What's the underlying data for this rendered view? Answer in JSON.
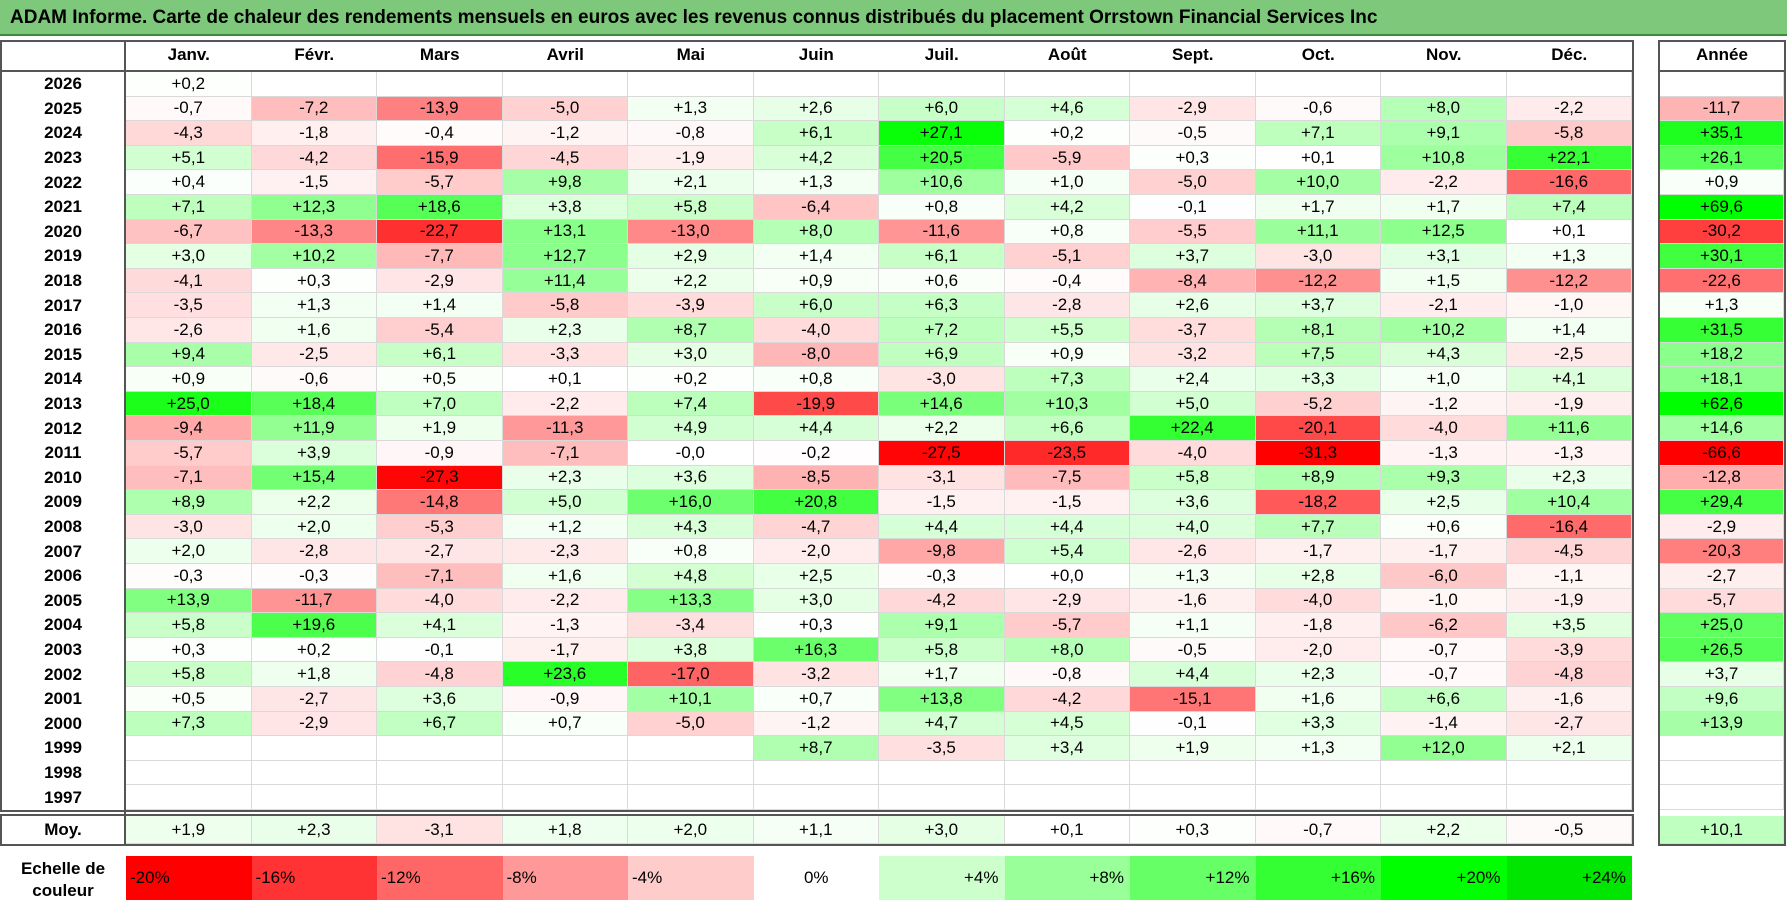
{
  "title": "ADAM Informe. Carte de chaleur des rendements mensuels en euros avec les revenus connus distribués du placement Orrstown Financial Services Inc",
  "chart_data": {
    "type": "heatmap",
    "title": "ADAM Informe. Carte de chaleur des rendements mensuels en euros avec les revenus connus distribués du placement Orrstown Financial Services Inc",
    "columns": [
      "Janv.",
      "Févr.",
      "Mars",
      "Avril",
      "Mai",
      "Juin",
      "Juil.",
      "Août",
      "Sept.",
      "Oct.",
      "Nov.",
      "Déc."
    ],
    "year_column": "Année",
    "rows": [
      {
        "year": "2026",
        "values": [
          "+0,2",
          null,
          null,
          null,
          null,
          null,
          null,
          null,
          null,
          null,
          null,
          null
        ],
        "annual": null
      },
      {
        "year": "2025",
        "values": [
          "-0,7",
          "-7,2",
          "-13,9",
          "-5,0",
          "+1,3",
          "+2,6",
          "+6,0",
          "+4,6",
          "-2,9",
          "-0,6",
          "+8,0",
          "-2,2"
        ],
        "annual": "-11,7"
      },
      {
        "year": "2024",
        "values": [
          "-4,3",
          "-1,8",
          "-0,4",
          "-1,2",
          "-0,8",
          "+6,1",
          "+27,1",
          "+0,2",
          "-0,5",
          "+7,1",
          "+9,1",
          "-5,8"
        ],
        "annual": "+35,1"
      },
      {
        "year": "2023",
        "values": [
          "+5,1",
          "-4,2",
          "-15,9",
          "-4,5",
          "-1,9",
          "+4,2",
          "+20,5",
          "-5,9",
          "+0,3",
          "+0,1",
          "+10,8",
          "+22,1"
        ],
        "annual": "+26,1"
      },
      {
        "year": "2022",
        "values": [
          "+0,4",
          "-1,5",
          "-5,7",
          "+9,8",
          "+2,1",
          "+1,3",
          "+10,6",
          "+1,0",
          "-5,0",
          "+10,0",
          "-2,2",
          "-16,6"
        ],
        "annual": "+0,9"
      },
      {
        "year": "2021",
        "values": [
          "+7,1",
          "+12,3",
          "+18,6",
          "+3,8",
          "+5,8",
          "-6,4",
          "+0,8",
          "+4,2",
          "-0,1",
          "+1,7",
          "+1,7",
          "+7,4"
        ],
        "annual": "+69,6"
      },
      {
        "year": "2020",
        "values": [
          "-6,7",
          "-13,3",
          "-22,7",
          "+13,1",
          "-13,0",
          "+8,0",
          "-11,6",
          "+0,8",
          "-5,5",
          "+11,1",
          "+12,5",
          "+0,1"
        ],
        "annual": "-30,2"
      },
      {
        "year": "2019",
        "values": [
          "+3,0",
          "+10,2",
          "-7,7",
          "+12,7",
          "+2,9",
          "+1,4",
          "+6,1",
          "-5,1",
          "+3,7",
          "-3,0",
          "+3,1",
          "+1,3"
        ],
        "annual": "+30,1"
      },
      {
        "year": "2018",
        "values": [
          "-4,1",
          "+0,3",
          "-2,9",
          "+11,4",
          "+2,2",
          "+0,9",
          "+0,6",
          "-0,4",
          "-8,4",
          "-12,2",
          "+1,5",
          "-12,2"
        ],
        "annual": "-22,6"
      },
      {
        "year": "2017",
        "values": [
          "-3,5",
          "+1,3",
          "+1,4",
          "-5,8",
          "-3,9",
          "+6,0",
          "+6,3",
          "-2,8",
          "+2,6",
          "+3,7",
          "-2,1",
          "-1,0"
        ],
        "annual": "+1,3"
      },
      {
        "year": "2016",
        "values": [
          "-2,6",
          "+1,6",
          "-5,4",
          "+2,3",
          "+8,7",
          "-4,0",
          "+7,2",
          "+5,5",
          "-3,7",
          "+8,1",
          "+10,2",
          "+1,4"
        ],
        "annual": "+31,5"
      },
      {
        "year": "2015",
        "values": [
          "+9,4",
          "-2,5",
          "+6,1",
          "-3,3",
          "+3,0",
          "-8,0",
          "+6,9",
          "+0,9",
          "-3,2",
          "+7,5",
          "+4,3",
          "-2,5"
        ],
        "annual": "+18,2"
      },
      {
        "year": "2014",
        "values": [
          "+0,9",
          "-0,6",
          "+0,5",
          "+0,1",
          "+0,2",
          "+0,8",
          "-3,0",
          "+7,3",
          "+2,4",
          "+3,3",
          "+1,0",
          "+4,1"
        ],
        "annual": "+18,1"
      },
      {
        "year": "2013",
        "values": [
          "+25,0",
          "+18,4",
          "+7,0",
          "-2,2",
          "+7,4",
          "-19,9",
          "+14,6",
          "+10,3",
          "+5,0",
          "-5,2",
          "-1,2",
          "-1,9"
        ],
        "annual": "+62,6"
      },
      {
        "year": "2012",
        "values": [
          "-9,4",
          "+11,9",
          "+1,9",
          "-11,3",
          "+4,9",
          "+4,4",
          "+2,2",
          "+6,6",
          "+22,4",
          "-20,1",
          "-4,0",
          "+11,6"
        ],
        "annual": "+14,6"
      },
      {
        "year": "2011",
        "values": [
          "-5,7",
          "+3,9",
          "-0,9",
          "-7,1",
          "-0,0",
          "-0,2",
          "-27,5",
          "-23,5",
          "-4,0",
          "-31,3",
          "-1,3",
          "-1,3"
        ],
        "annual": "-66,6"
      },
      {
        "year": "2010",
        "values": [
          "-7,1",
          "+15,4",
          "-27,3",
          "+2,3",
          "+3,6",
          "-8,5",
          "-3,1",
          "-7,5",
          "+5,8",
          "+8,9",
          "+9,3",
          "+2,3"
        ],
        "annual": "-12,8"
      },
      {
        "year": "2009",
        "values": [
          "+8,9",
          "+2,2",
          "-14,8",
          "+5,0",
          "+16,0",
          "+20,8",
          "-1,5",
          "-1,5",
          "+3,6",
          "-18,2",
          "+2,5",
          "+10,4"
        ],
        "annual": "+29,4"
      },
      {
        "year": "2008",
        "values": [
          "-3,0",
          "+2,0",
          "-5,3",
          "+1,2",
          "+4,3",
          "-4,7",
          "+4,4",
          "+4,4",
          "+4,0",
          "+7,7",
          "+0,6",
          "-16,4"
        ],
        "annual": "-2,9"
      },
      {
        "year": "2007",
        "values": [
          "+2,0",
          "-2,8",
          "-2,7",
          "-2,3",
          "+0,8",
          "-2,0",
          "-9,8",
          "+5,4",
          "-2,6",
          "-1,7",
          "-1,7",
          "-4,5"
        ],
        "annual": "-20,3"
      },
      {
        "year": "2006",
        "values": [
          "-0,3",
          "-0,3",
          "-7,1",
          "+1,6",
          "+4,8",
          "+2,5",
          "-0,3",
          "+0,0",
          "+1,3",
          "+2,8",
          "-6,0",
          "-1,1"
        ],
        "annual": "-2,7"
      },
      {
        "year": "2005",
        "values": [
          "+13,9",
          "-11,7",
          "-4,0",
          "-2,2",
          "+13,3",
          "+3,0",
          "-4,2",
          "-2,9",
          "-1,6",
          "-4,0",
          "-1,0",
          "-1,9"
        ],
        "annual": "-5,7"
      },
      {
        "year": "2004",
        "values": [
          "+5,8",
          "+19,6",
          "+4,1",
          "-1,3",
          "-3,4",
          "+0,3",
          "+9,1",
          "-5,7",
          "+1,1",
          "-1,8",
          "-6,2",
          "+3,5"
        ],
        "annual": "+25,0"
      },
      {
        "year": "2003",
        "values": [
          "+0,3",
          "+0,2",
          "-0,1",
          "-1,7",
          "+3,8",
          "+16,3",
          "+5,8",
          "+8,0",
          "-0,5",
          "-2,0",
          "-0,7",
          "-3,9"
        ],
        "annual": "+26,5"
      },
      {
        "year": "2002",
        "values": [
          "+5,8",
          "+1,8",
          "-4,8",
          "+23,6",
          "-17,0",
          "-3,2",
          "+1,7",
          "-0,8",
          "+4,4",
          "+2,3",
          "-0,7",
          "-4,8"
        ],
        "annual": "+3,7"
      },
      {
        "year": "2001",
        "values": [
          "+0,5",
          "-2,7",
          "+3,6",
          "-0,9",
          "+10,1",
          "+0,7",
          "+13,8",
          "-4,2",
          "-15,1",
          "+1,6",
          "+6,6",
          "-1,6"
        ],
        "annual": "+9,6"
      },
      {
        "year": "2000",
        "values": [
          "+7,3",
          "-2,9",
          "+6,7",
          "+0,7",
          "-5,0",
          "-1,2",
          "+4,7",
          "+4,5",
          "-0,1",
          "+3,3",
          "-1,4",
          "-2,7"
        ],
        "annual": "+13,9"
      },
      {
        "year": "1999",
        "values": [
          null,
          null,
          null,
          null,
          null,
          "+8,7",
          "-3,5",
          "+3,4",
          "+1,9",
          "+1,3",
          "+12,0",
          "+2,1"
        ],
        "annual": null
      },
      {
        "year": "1998",
        "values": [
          null,
          null,
          null,
          null,
          null,
          null,
          null,
          null,
          null,
          null,
          null,
          null
        ],
        "annual": null
      },
      {
        "year": "1997",
        "values": [
          null,
          null,
          null,
          null,
          null,
          null,
          null,
          null,
          null,
          null,
          null,
          null
        ],
        "annual": null
      }
    ],
    "average": {
      "label": "Moy.",
      "values": [
        "+1,9",
        "+2,3",
        "-3,1",
        "+1,8",
        "+2,0",
        "+1,1",
        "+3,0",
        "+0,1",
        "+0,3",
        "-0,7",
        "+2,2",
        "-0,5"
      ],
      "annual": "+10,1"
    },
    "scale": {
      "label_line1": "Echelle de",
      "label_line2": "couleur",
      "steps": [
        {
          "label": "-20%",
          "value": -20,
          "color": "#ff0000"
        },
        {
          "label": "-16%",
          "value": -16,
          "color": "#ff3333"
        },
        {
          "label": "-12%",
          "value": -12,
          "color": "#ff6666"
        },
        {
          "label": "-8%",
          "value": -8,
          "color": "#ff9999"
        },
        {
          "label": "-4%",
          "value": -4,
          "color": "#ffcccc"
        },
        {
          "label": "0%",
          "value": 0,
          "color": "#ffffff"
        },
        {
          "label": "+4%",
          "value": 4,
          "color": "#ccffcc"
        },
        {
          "label": "+8%",
          "value": 8,
          "color": "#99ff99"
        },
        {
          "label": "+12%",
          "value": 12,
          "color": "#66ff66"
        },
        {
          "label": "+16%",
          "value": 16,
          "color": "#33ff33"
        },
        {
          "label": "+20%",
          "value": 20,
          "color": "#00ff00"
        },
        {
          "label": "+24%",
          "value": 24,
          "color": "#00e600"
        }
      ]
    }
  }
}
